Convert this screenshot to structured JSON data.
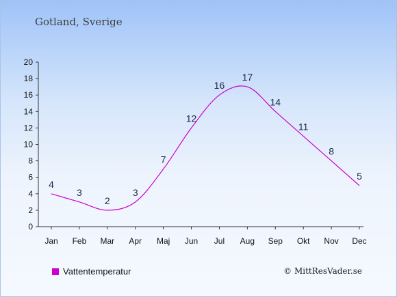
{
  "header": {
    "location": "Gotland, Sverige"
  },
  "legend": {
    "label": "Vattentemperatur",
    "color": "#cc00cc"
  },
  "credit": "© MittResVader.se",
  "chart_data": {
    "type": "line",
    "title": "",
    "xlabel": "",
    "ylabel": "",
    "categories": [
      "Jan",
      "Feb",
      "Mar",
      "Apr",
      "Maj",
      "Jun",
      "Jul",
      "Aug",
      "Sep",
      "Okt",
      "Nov",
      "Dec"
    ],
    "series": [
      {
        "name": "Vattentemperatur",
        "color": "#cc00cc",
        "values": [
          4,
          3,
          2,
          3,
          7,
          12,
          16,
          17,
          14,
          11,
          8,
          5
        ]
      }
    ],
    "ylim": [
      0,
      20
    ],
    "yticks": [
      0,
      2,
      4,
      6,
      8,
      10,
      12,
      14,
      16,
      18,
      20
    ],
    "grid": false,
    "legend_position": "bottom-left",
    "data_label_color": "#1a2a4a"
  }
}
